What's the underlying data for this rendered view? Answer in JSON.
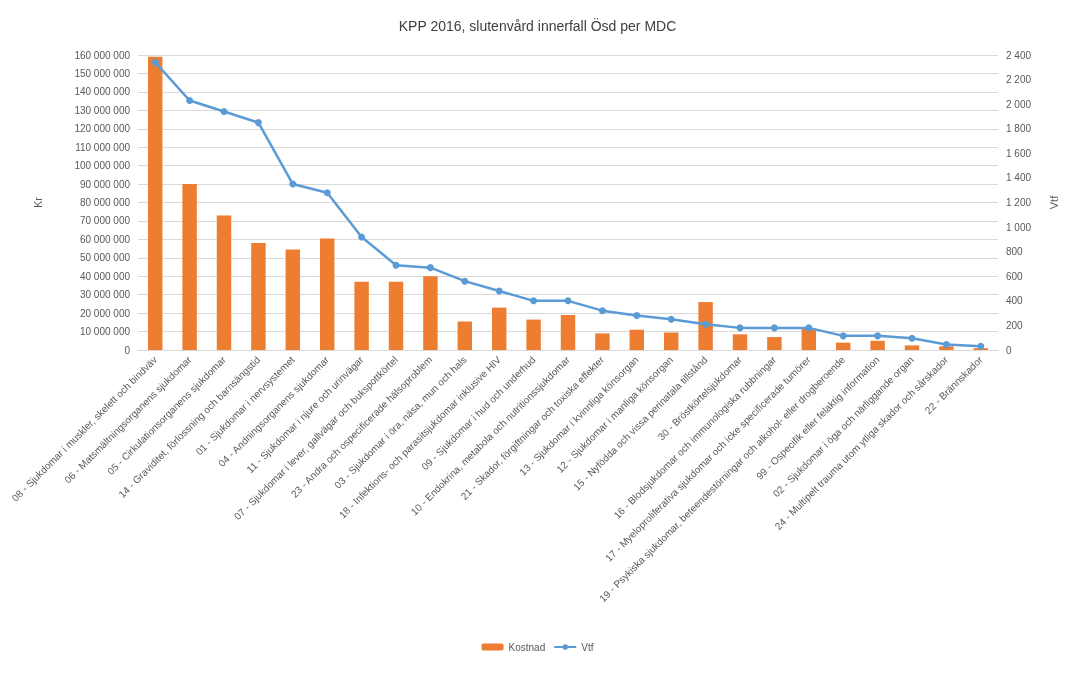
{
  "chart_data": {
    "type": "bar",
    "title": "KPP 2016, slutenvård innerfall Ösd per MDC",
    "ylabel": "Kr",
    "y2label": "Vtf",
    "categories": [
      "08 - Sjukdomar i muskler, skelett och bindväv",
      "06 - Matsmältningsorganens sjukdomar",
      "05 - Cirkulationsorganens sjukdomar",
      "14 - Graviditet, förlossning och barnsängstid",
      "01 - Sjukdomar i nervsystemet",
      "04 - Andningsorganens sjukdomar",
      "11 - Sjukdomar i njure och urinvägar",
      "07 - Sjukdomar i lever, gallvägar och bukspottkörtel",
      "23 - Andra och ospecificerade hälsoproblem",
      "03 - Sjukdomar i öra, näsa, mun och hals",
      "18 - Infektions- och parasitsjukdomar inklusive HIV",
      "09 - Sjukdomar i hud och underhud",
      "10 - Endokrina, metabola och nutritionssjukdomar",
      "21 - Skador, förgiftningar och toxiska effekter",
      "13 - Sjukdomar i kvinnliga könsorgan",
      "12 - Sjukdomar i manliga könsorgan",
      "15 - Nyfödda och vissa perinatala tillstånd",
      "30 - Bröstkörtelsjukdomar",
      "16 - Blodsjukdomar och immunologiska rubbningar",
      "17 - Myeloproliferativa sjukdomar och icke specificerade tumörer",
      "19 - Psykiska sjukdomar, beteendestörningar och alkohol- eller drogberoende",
      "99 - Ospecifik eller felaktig information",
      "02 - Sjukdomar i öga och närliggande organ",
      "24 - Multipelt trauma utom ytliga skador och sårskador",
      "22 - Brännskador"
    ],
    "series": [
      {
        "name": "Kostnad",
        "color": "#ed7d31",
        "values": [
          159000000,
          90000000,
          73000000,
          58000000,
          54500000,
          60500000,
          37000000,
          37000000,
          40000000,
          15500000,
          23000000,
          16500000,
          19000000,
          9000000,
          11000000,
          9500000,
          26000000,
          8500000,
          7000000,
          11500000,
          4000000,
          5000000,
          2500000,
          2000000,
          1000000
        ]
      },
      {
        "name": "Vtf",
        "type": "line",
        "axis": "y2",
        "color": "#5b9bd5",
        "marker": "circle",
        "values": [
          2340,
          2030,
          1940,
          1850,
          1350,
          1280,
          920,
          690,
          670,
          560,
          480,
          400,
          400,
          320,
          280,
          250,
          210,
          180,
          180,
          180,
          115,
          115,
          95,
          45,
          30
        ]
      }
    ],
    "ylim": [
      0,
      160000000
    ],
    "yticks": [
      0,
      {
        "value": 10000000,
        "label": "10 000 000"
      },
      {
        "value": 20000000,
        "label": "20 000 000"
      },
      {
        "value": 30000000,
        "label": "30 000 000"
      },
      {
        "value": 40000000,
        "label": "40 000 000"
      },
      {
        "value": 50000000,
        "label": "50 000 000"
      },
      {
        "value": 60000000,
        "label": "60 000 000"
      },
      {
        "value": 70000000,
        "label": "70 000 000"
      },
      {
        "value": 80000000,
        "label": "80 000 000"
      },
      {
        "value": 90000000,
        "label": "90 000 000"
      },
      {
        "value": 100000000,
        "label": "100 000 000"
      },
      {
        "value": 110000000,
        "label": "110 000 000"
      },
      {
        "value": 120000000,
        "label": "120 000 000"
      },
      {
        "value": 130000000,
        "label": "130 000 000"
      },
      {
        "value": 140000000,
        "label": "140 000 000"
      },
      {
        "value": 150000000,
        "label": "150 000 000"
      },
      {
        "value": 160000000,
        "label": "160 000 000"
      }
    ],
    "y2lim": [
      0,
      2400
    ],
    "y2ticks": [
      0,
      200,
      400,
      600,
      800,
      {
        "value": 1000,
        "label": "1 000"
      },
      {
        "value": 1200,
        "label": "1 200"
      },
      {
        "value": 1400,
        "label": "1 400"
      },
      {
        "value": 1600,
        "label": "1 600"
      },
      {
        "value": 1800,
        "label": "1 800"
      },
      {
        "value": 2000,
        "label": "2 000"
      },
      {
        "value": 2200,
        "label": "2 200"
      },
      {
        "value": 2400,
        "label": "2 400"
      }
    ],
    "grid": "y",
    "legend": "bottom"
  }
}
